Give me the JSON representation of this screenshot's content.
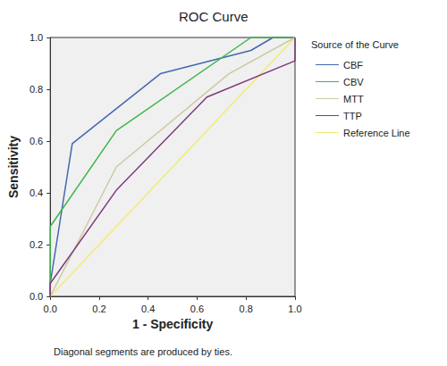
{
  "chart_data": {
    "type": "line",
    "title": "ROC Curve",
    "x_label": "1 - Specificity",
    "y_label": "Sensitivity",
    "legend_title": "Source of the Curve",
    "annotations": [
      "Diagonal segments are produced by ties."
    ],
    "legend": "right",
    "grid": false,
    "xlim": [
      0,
      1
    ],
    "ylim": [
      0,
      1
    ],
    "xticks": [
      {
        "value": 0,
        "label": "0.0"
      },
      0.2,
      0.4,
      0.6,
      0.8,
      {
        "value": 1,
        "label": "1.0"
      }
    ],
    "yticks": [
      {
        "value": 0,
        "label": "0.0"
      },
      0.2,
      0.4,
      0.6,
      0.8,
      {
        "value": 1,
        "label": "1.0"
      }
    ],
    "series": [
      {
        "name": "CBF",
        "color": "#4467b0",
        "x": [
          0,
          0,
          0.09,
          0.45,
          0.82,
          0.91,
          1
        ],
        "values": [
          0,
          0.05,
          0.59,
          0.86,
          0.95,
          1,
          1
        ]
      },
      {
        "name": "CBV",
        "color": "#3fb54a",
        "x": [
          0,
          0,
          0.27,
          0.82,
          1
        ],
        "values": [
          0,
          0.27,
          0.64,
          1,
          1
        ]
      },
      {
        "name": "MTT",
        "color": "#cdc9a0",
        "x": [
          0,
          0.27,
          0.73,
          1
        ],
        "values": [
          0,
          0.5,
          0.86,
          1
        ]
      },
      {
        "name": "TTP",
        "color": "#7d3a7d",
        "x": [
          0,
          0,
          0.27,
          0.64,
          1,
          1
        ],
        "values": [
          0,
          0.05,
          0.41,
          0.77,
          0.91,
          1
        ]
      },
      {
        "name": "Reference Line",
        "color": "#f2ec72",
        "x": [
          0,
          1
        ],
        "values": [
          0,
          1
        ]
      }
    ]
  }
}
